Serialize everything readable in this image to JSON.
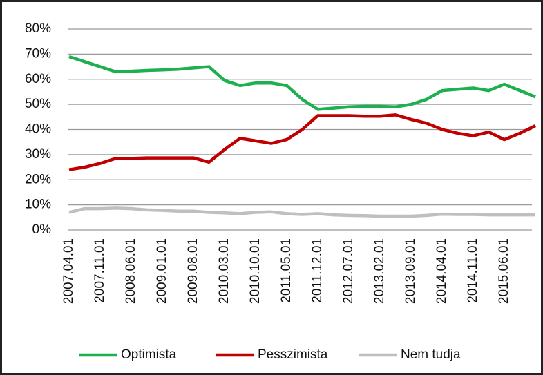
{
  "chart_data": {
    "type": "line",
    "categories": [
      "2007.04.01",
      null,
      "2007.11.01",
      null,
      "2008.06.01",
      null,
      "2009.01.01",
      null,
      "2009.08.01",
      null,
      "2010.03.01",
      null,
      "2010.10.01",
      null,
      "2011.05.01",
      null,
      "2011.12.01",
      null,
      "2012.07.01",
      null,
      "2013.02.01",
      null,
      "2013.09.01",
      null,
      "2014.04.01",
      null,
      "2014.11.01",
      null,
      "2015.06.01",
      null,
      null
    ],
    "series": [
      {
        "name": "Optimista",
        "color": "#1db050",
        "values": [
          69,
          67,
          65,
          63,
          63.2,
          63.5,
          63.7,
          64,
          64.5,
          65,
          59.5,
          57.5,
          58.5,
          58.5,
          57.5,
          52,
          48,
          48.5,
          49,
          49.2,
          49.2,
          49,
          50,
          52,
          55.5,
          56,
          56.5,
          55.5,
          58,
          55.5,
          53
        ]
      },
      {
        "name": "Pesszimista",
        "color": "#c00000",
        "values": [
          24,
          25,
          26.5,
          28.5,
          28.5,
          28.7,
          28.7,
          28.7,
          28.7,
          27,
          32,
          36.5,
          35.5,
          34.5,
          36,
          40,
          45.5,
          45.5,
          45.5,
          45.3,
          45.3,
          45.8,
          44,
          42.5,
          40,
          38.5,
          37.5,
          39,
          36,
          38.5,
          41.5
        ]
      },
      {
        "name": "Nem tudja",
        "color": "#bfbfbf",
        "values": [
          7,
          8.5,
          8.5,
          8.7,
          8.5,
          8,
          7.8,
          7.5,
          7.5,
          7,
          6.8,
          6.5,
          7,
          7.2,
          6.5,
          6.2,
          6.5,
          6,
          5.8,
          5.7,
          5.5,
          5.5,
          5.5,
          5.8,
          6.3,
          6.2,
          6.2,
          6,
          6,
          6,
          6
        ]
      }
    ],
    "ylim": [
      0,
      80
    ],
    "yticks": [
      {
        "value": 0,
        "label": "0%"
      },
      {
        "value": 10,
        "label": "10%"
      },
      {
        "value": 20,
        "label": "20%"
      },
      {
        "value": 30,
        "label": "30%"
      },
      {
        "value": 40,
        "label": "40%"
      },
      {
        "value": 50,
        "label": "50%"
      },
      {
        "value": 60,
        "label": "60%"
      },
      {
        "value": 70,
        "label": "70%"
      },
      {
        "value": 80,
        "label": "80%"
      }
    ],
    "grid": true,
    "legend": "bottom"
  }
}
